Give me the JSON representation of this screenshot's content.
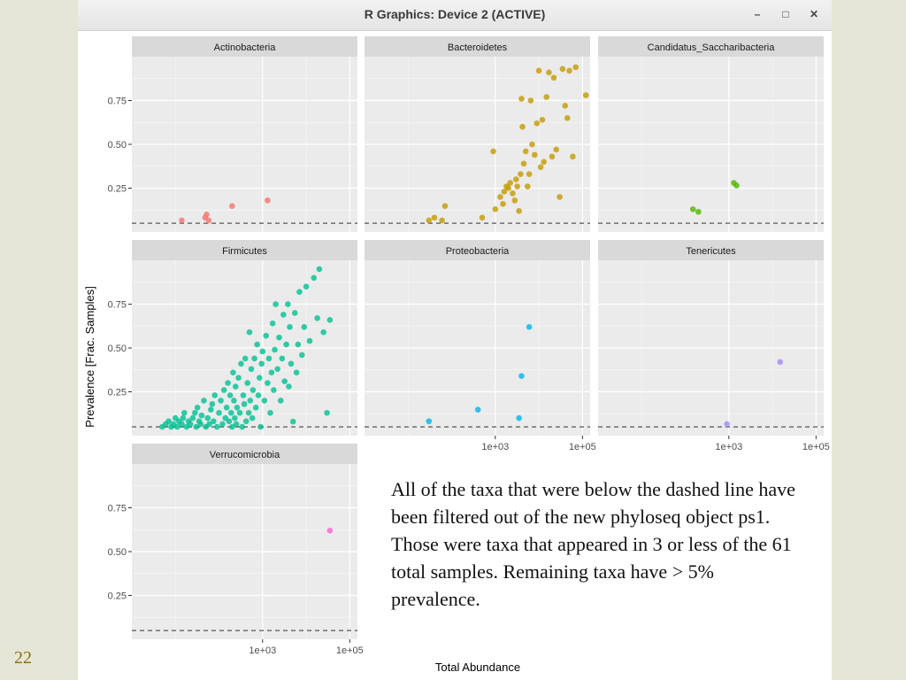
{
  "slide": {
    "number": "22"
  },
  "window": {
    "title": "R Graphics: Device 2 (ACTIVE)",
    "minimize_icon": "minimize-icon",
    "maximize_icon": "maximize-icon",
    "close_icon": "close-icon"
  },
  "caption": "All of the taxa that were below the dashed line have been filtered out of the new phyloseq object ps1.  Those were taxa that appeared in 3 or less of the 61 total samples.  Remaining taxa have > 5% prevalence.",
  "chart_data": {
    "type": "scatter",
    "xlabel": "Total Abundance",
    "ylabel": "Prevalence [Frac. Samples]",
    "x_scale": "log10",
    "xlim": [
      1,
      150000
    ],
    "ylim": [
      0,
      1
    ],
    "x_ticks": [
      {
        "value": 1000,
        "label": "1e+03"
      },
      {
        "value": 100000,
        "label": "1e+05"
      }
    ],
    "y_ticks": [
      {
        "value": 0.25,
        "label": "0.25"
      },
      {
        "value": 0.5,
        "label": "0.50"
      },
      {
        "value": 0.75,
        "label": "0.75"
      }
    ],
    "threshold": 0.05,
    "grid": true,
    "legend": "none",
    "panels": [
      {
        "name": "Actinobacteria",
        "color": "#f8766d",
        "points": [
          [
            14,
            0.066
          ],
          [
            48,
            0.082
          ],
          [
            52,
            0.1
          ],
          [
            58,
            0.066
          ],
          [
            200,
            0.148
          ],
          [
            1300,
            0.18
          ]
        ]
      },
      {
        "name": "Bacteroidetes",
        "color": "#c49a00",
        "points": [
          [
            30,
            0.066
          ],
          [
            40,
            0.082
          ],
          [
            60,
            0.066
          ],
          [
            70,
            0.148
          ],
          [
            500,
            0.082
          ],
          [
            900,
            0.46
          ],
          [
            1000,
            0.13
          ],
          [
            1300,
            0.2
          ],
          [
            1500,
            0.16
          ],
          [
            1600,
            0.23
          ],
          [
            1800,
            0.26
          ],
          [
            2000,
            0.25
          ],
          [
            2200,
            0.28
          ],
          [
            2500,
            0.22
          ],
          [
            2800,
            0.18
          ],
          [
            3000,
            0.3
          ],
          [
            3200,
            0.26
          ],
          [
            3500,
            0.12
          ],
          [
            3800,
            0.33
          ],
          [
            4000,
            0.76
          ],
          [
            4200,
            0.6
          ],
          [
            4500,
            0.39
          ],
          [
            5000,
            0.46
          ],
          [
            5500,
            0.26
          ],
          [
            6000,
            0.33
          ],
          [
            6500,
            0.75
          ],
          [
            7000,
            0.5
          ],
          [
            8000,
            0.44
          ],
          [
            9000,
            0.62
          ],
          [
            10000,
            0.92
          ],
          [
            11000,
            0.37
          ],
          [
            12000,
            0.64
          ],
          [
            13000,
            0.4
          ],
          [
            15000,
            0.77
          ],
          [
            17000,
            0.91
          ],
          [
            20000,
            0.43
          ],
          [
            22000,
            0.88
          ],
          [
            25000,
            0.47
          ],
          [
            30000,
            0.2
          ],
          [
            35000,
            0.93
          ],
          [
            40000,
            0.72
          ],
          [
            45000,
            0.65
          ],
          [
            50000,
            0.92
          ],
          [
            60000,
            0.43
          ],
          [
            70000,
            0.94
          ],
          [
            120000,
            0.78
          ]
        ]
      },
      {
        "name": "Candidatus_Saccharibacteria",
        "color": "#53b400",
        "points": [
          [
            150,
            0.13
          ],
          [
            200,
            0.115
          ],
          [
            1300,
            0.28
          ],
          [
            1500,
            0.265
          ]
        ]
      },
      {
        "name": "Firmicutes",
        "color": "#00c094",
        "points": [
          [
            5,
            0.05
          ],
          [
            6,
            0.066
          ],
          [
            7,
            0.082
          ],
          [
            8,
            0.05
          ],
          [
            9,
            0.066
          ],
          [
            10,
            0.1
          ],
          [
            11,
            0.05
          ],
          [
            12,
            0.082
          ],
          [
            14,
            0.066
          ],
          [
            15,
            0.1
          ],
          [
            16,
            0.13
          ],
          [
            18,
            0.05
          ],
          [
            20,
            0.082
          ],
          [
            22,
            0.066
          ],
          [
            25,
            0.1
          ],
          [
            28,
            0.13
          ],
          [
            30,
            0.05
          ],
          [
            32,
            0.16
          ],
          [
            35,
            0.082
          ],
          [
            38,
            0.066
          ],
          [
            40,
            0.115
          ],
          [
            45,
            0.2
          ],
          [
            50,
            0.05
          ],
          [
            55,
            0.1
          ],
          [
            60,
            0.066
          ],
          [
            65,
            0.148
          ],
          [
            70,
            0.18
          ],
          [
            75,
            0.082
          ],
          [
            80,
            0.23
          ],
          [
            90,
            0.05
          ],
          [
            100,
            0.13
          ],
          [
            110,
            0.2
          ],
          [
            120,
            0.066
          ],
          [
            130,
            0.26
          ],
          [
            140,
            0.1
          ],
          [
            150,
            0.16
          ],
          [
            160,
            0.3
          ],
          [
            170,
            0.082
          ],
          [
            180,
            0.23
          ],
          [
            190,
            0.13
          ],
          [
            200,
            0.05
          ],
          [
            210,
            0.36
          ],
          [
            220,
            0.2
          ],
          [
            230,
            0.1
          ],
          [
            240,
            0.28
          ],
          [
            250,
            0.066
          ],
          [
            260,
            0.16
          ],
          [
            280,
            0.33
          ],
          [
            300,
            0.13
          ],
          [
            320,
            0.41
          ],
          [
            340,
            0.05
          ],
          [
            360,
            0.23
          ],
          [
            380,
            0.18
          ],
          [
            400,
            0.44
          ],
          [
            420,
            0.082
          ],
          [
            450,
            0.3
          ],
          [
            480,
            0.13
          ],
          [
            500,
            0.59
          ],
          [
            520,
            0.2
          ],
          [
            550,
            0.38
          ],
          [
            580,
            0.1
          ],
          [
            600,
            0.26
          ],
          [
            650,
            0.44
          ],
          [
            700,
            0.16
          ],
          [
            750,
            0.52
          ],
          [
            800,
            0.23
          ],
          [
            850,
            0.33
          ],
          [
            900,
            0.05
          ],
          [
            950,
            0.41
          ],
          [
            1000,
            0.48
          ],
          [
            1100,
            0.2
          ],
          [
            1200,
            0.57
          ],
          [
            1300,
            0.3
          ],
          [
            1400,
            0.44
          ],
          [
            1500,
            0.13
          ],
          [
            1600,
            0.36
          ],
          [
            1700,
            0.64
          ],
          [
            1800,
            0.26
          ],
          [
            1900,
            0.49
          ],
          [
            2000,
            0.75
          ],
          [
            2200,
            0.38
          ],
          [
            2400,
            0.56
          ],
          [
            2600,
            0.2
          ],
          [
            2800,
            0.44
          ],
          [
            3000,
            0.69
          ],
          [
            3200,
            0.31
          ],
          [
            3500,
            0.52
          ],
          [
            3800,
            0.75
          ],
          [
            4000,
            0.28
          ],
          [
            4200,
            0.62
          ],
          [
            4500,
            0.41
          ],
          [
            5000,
            0.08
          ],
          [
            5500,
            0.7
          ],
          [
            6000,
            0.36
          ],
          [
            6500,
            0.52
          ],
          [
            7000,
            0.82
          ],
          [
            8000,
            0.46
          ],
          [
            9000,
            0.62
          ],
          [
            10000,
            0.85
          ],
          [
            12000,
            0.54
          ],
          [
            15000,
            0.9
          ],
          [
            18000,
            0.67
          ],
          [
            20000,
            0.95
          ],
          [
            25000,
            0.59
          ],
          [
            30000,
            0.13
          ],
          [
            35000,
            0.66
          ]
        ]
      },
      {
        "name": "Proteobacteria",
        "color": "#00b6eb",
        "points": [
          [
            30,
            0.082
          ],
          [
            400,
            0.148
          ],
          [
            3500,
            0.1
          ],
          [
            4000,
            0.34
          ],
          [
            6000,
            0.62
          ]
        ]
      },
      {
        "name": "Tenericutes",
        "color": "#a58aff",
        "points": [
          [
            900,
            0.066
          ],
          [
            15000,
            0.42
          ]
        ]
      },
      {
        "name": "Verrucomicrobia",
        "color": "#fb61d7",
        "points": [
          [
            35000,
            0.62
          ]
        ]
      }
    ]
  }
}
